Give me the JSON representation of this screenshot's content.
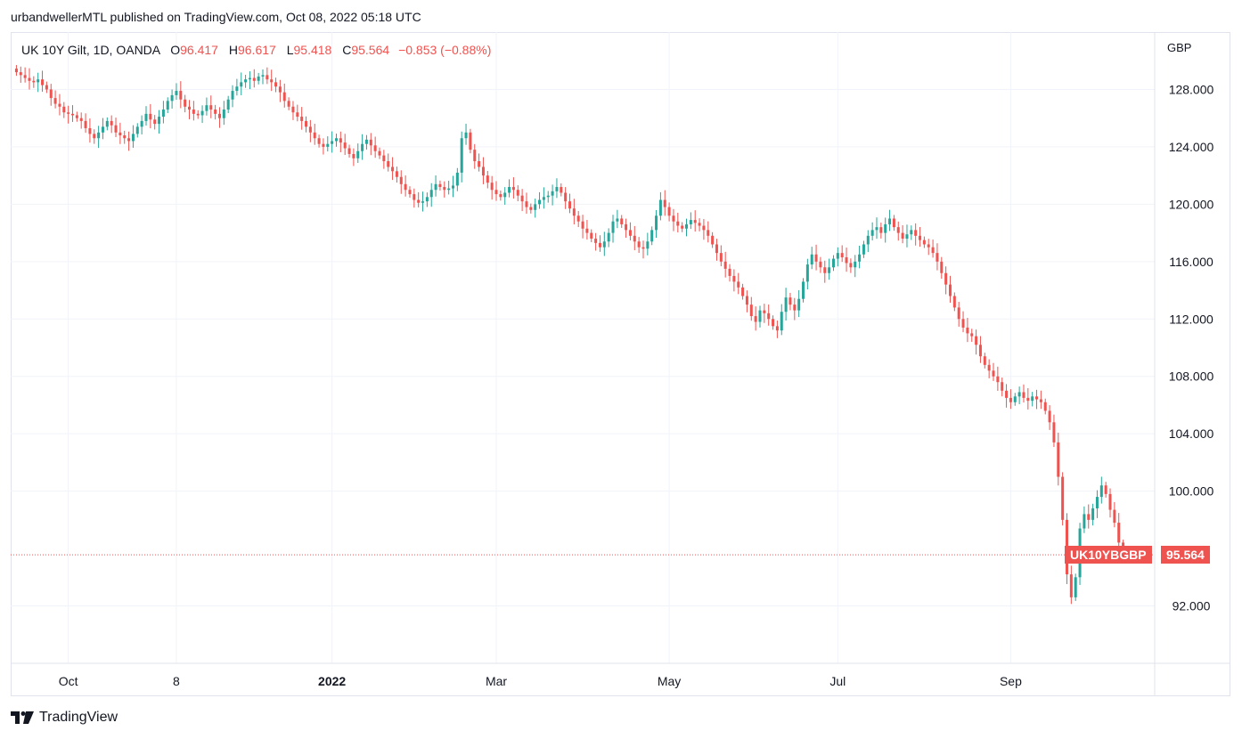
{
  "header": {
    "published_text": "urbandwellerMTL published on TradingView.com, Oct 08, 2022 05:18 UTC"
  },
  "legend": {
    "symbol": "UK 10Y Gilt, 1D, OANDA",
    "o_label": "O",
    "o_value": "96.417",
    "h_label": "H",
    "h_value": "96.617",
    "l_label": "L",
    "l_value": "95.418",
    "c_label": "C",
    "c_value": "95.564",
    "change": "−0.853 (−0.88%)"
  },
  "currency": "GBP",
  "price_tag": {
    "symbol": "UK10YBGBP",
    "value": "95.564"
  },
  "footer": {
    "brand": "TradingView",
    "logo_icon": "tradingview-logo-icon"
  },
  "colors": {
    "up": "#26a69a",
    "down": "#ef5350",
    "grid": "#f0f3fa",
    "text": "#131722"
  },
  "chart_data": {
    "type": "candlestick",
    "title": "UK 10Y Gilt, 1D, OANDA",
    "ylabel": "GBP",
    "ylim": [
      88.0,
      132.0
    ],
    "y_ticks": [
      "92.000",
      "100.000",
      "104.000",
      "108.000",
      "112.000",
      "116.000",
      "120.000",
      "124.000",
      "128.000"
    ],
    "x_ticks": [
      {
        "label": "Oct",
        "bold": false,
        "index": 12
      },
      {
        "label": "8",
        "bold": false,
        "index": 37
      },
      {
        "label": "2022",
        "bold": true,
        "index": 73
      },
      {
        "label": "Mar",
        "bold": false,
        "index": 111
      },
      {
        "label": "May",
        "bold": false,
        "index": 151
      },
      {
        "label": "Jul",
        "bold": false,
        "index": 190
      },
      {
        "label": "Sep",
        "bold": false,
        "index": 230
      }
    ],
    "grid": true,
    "last_price": 95.564,
    "closes": [
      129.2,
      129.0,
      128.8,
      128.6,
      128.5,
      128.7,
      128.3,
      128.0,
      127.4,
      127.0,
      126.8,
      126.4,
      126.3,
      126.2,
      126.0,
      125.8,
      125.3,
      124.9,
      124.6,
      125.0,
      125.4,
      125.8,
      125.5,
      125.0,
      124.8,
      124.6,
      124.4,
      124.9,
      125.4,
      125.8,
      126.3,
      125.9,
      125.6,
      126.1,
      126.6,
      127.2,
      127.6,
      127.9,
      127.3,
      126.8,
      126.6,
      126.3,
      126.2,
      126.5,
      126.9,
      126.6,
      126.3,
      126.0,
      126.6,
      127.3,
      127.9,
      128.2,
      128.5,
      128.7,
      128.8,
      128.6,
      128.9,
      129.0,
      128.7,
      128.5,
      128.2,
      127.8,
      127.2,
      126.8,
      126.4,
      126.1,
      125.8,
      125.4,
      125.0,
      124.6,
      124.2,
      124.0,
      124.2,
      124.4,
      124.6,
      124.3,
      123.9,
      123.5,
      123.2,
      123.7,
      124.2,
      124.5,
      124.1,
      123.7,
      123.4,
      123.0,
      122.6,
      122.3,
      121.9,
      121.4,
      121.0,
      120.7,
      120.3,
      120.1,
      120.2,
      120.5,
      121.0,
      121.4,
      121.2,
      121.0,
      121.1,
      121.3,
      122.2,
      124.6,
      125.0,
      123.8,
      123.0,
      122.6,
      122.0,
      121.5,
      121.0,
      120.7,
      120.5,
      120.8,
      121.2,
      121.0,
      120.6,
      120.2,
      119.8,
      119.6,
      120.0,
      120.3,
      120.5,
      120.6,
      120.9,
      121.2,
      120.8,
      120.2,
      119.7,
      119.2,
      118.8,
      118.3,
      118.0,
      117.6,
      117.3,
      117.0,
      117.4,
      118.0,
      118.8,
      119.0,
      118.6,
      118.2,
      117.8,
      117.4,
      117.0,
      116.9,
      117.4,
      118.2,
      119.2,
      120.3,
      119.8,
      119.2,
      118.8,
      118.5,
      118.3,
      118.6,
      118.9,
      118.7,
      118.5,
      118.2,
      117.8,
      117.2,
      116.6,
      116.0,
      115.5,
      115.0,
      114.6,
      114.2,
      113.6,
      113.0,
      112.2,
      111.8,
      112.6,
      112.4,
      112.0,
      111.5,
      111.2,
      112.5,
      113.5,
      113.0,
      112.6,
      113.4,
      114.6,
      115.8,
      116.5,
      116.0,
      115.6,
      115.2,
      115.6,
      116.2,
      116.6,
      116.3,
      115.9,
      115.6,
      116.0,
      116.5,
      117.2,
      117.8,
      118.2,
      118.4,
      118.0,
      118.6,
      119.0,
      118.4,
      118.0,
      117.6,
      117.9,
      118.2,
      117.8,
      117.5,
      117.2,
      117.0,
      116.6,
      116.0,
      115.2,
      114.4,
      113.6,
      112.8,
      112.0,
      111.4,
      111.0,
      110.8,
      110.2,
      109.4,
      108.8,
      108.4,
      108.0,
      107.6,
      107.0,
      106.5,
      106.2,
      106.6,
      106.9,
      106.5,
      106.3,
      106.6,
      106.4,
      106.2,
      105.6,
      104.8,
      103.4,
      101.0,
      98.0,
      94.2,
      92.6,
      94.0,
      97.4,
      98.4,
      98.0,
      98.8,
      99.6,
      100.4,
      99.8,
      98.7,
      97.8,
      96.417,
      95.564
    ]
  }
}
